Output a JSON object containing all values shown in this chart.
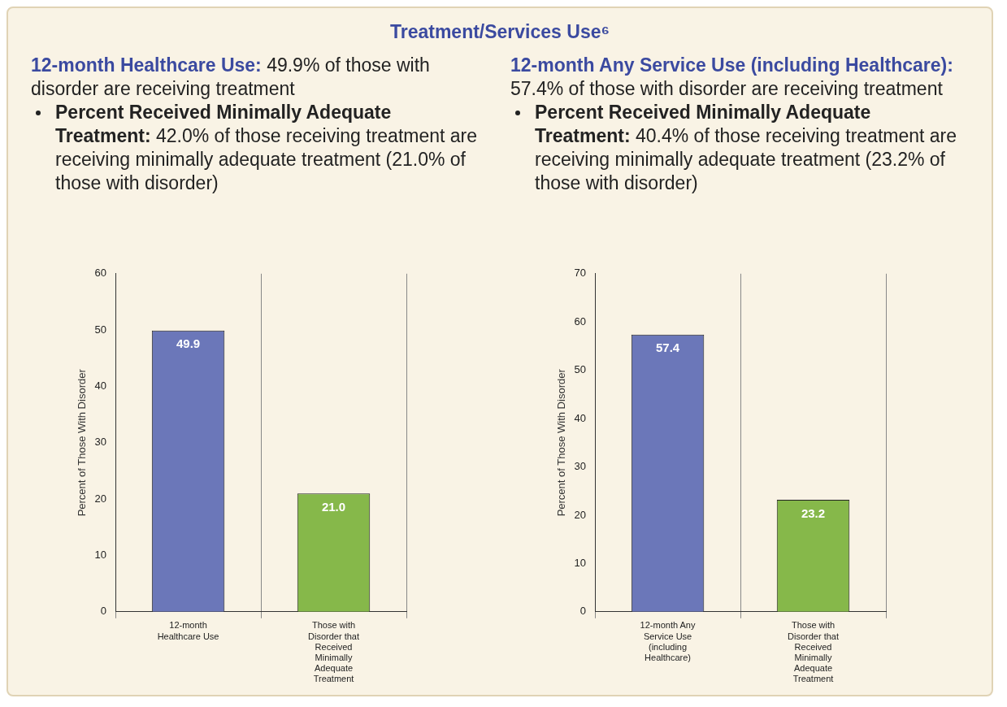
{
  "chart_data": [
    {
      "type": "other",
      "title": "Treatment/Services Use⁶"
    },
    {
      "type": "bar",
      "subtitle": "12-month Healthcare Use: 49.9% of those with disorder are receiving treatment",
      "annotations": [
        "Percent Received Minimally Adequate Treatment: 42.0% of those receiving treatment are receiving minimally adequate treatment (21.0% of those with disorder)"
      ],
      "categories": [
        "12-month Healthcare Use",
        "Those with Disorder that Received Minimally Adequate Treatment"
      ],
      "values": [
        49.9,
        21.0
      ],
      "colors": [
        "#6b77b9",
        "#86b84a"
      ],
      "value_labels": [
        "49.9",
        "21.0"
      ],
      "ylabel": "Percent of Those With Disorder",
      "ylim": [
        0,
        60
      ],
      "yticks": [
        0,
        10,
        20,
        30,
        40,
        50,
        60
      ],
      "grid": "x"
    },
    {
      "type": "bar",
      "subtitle": "12-month Any Service Use (including Healthcare): 57.4% of those with disorder are receiving treatment",
      "annotations": [
        "Percent Received Minimally Adequate Treatment: 40.4% of those receiving treatment are receiving minimally adequate treatment (23.2% of those with disorder)"
      ],
      "categories": [
        "12-month Any Service Use (including Healthcare)",
        "Those with Disorder that Received Minimally Adequate Treatment"
      ],
      "values": [
        57.4,
        23.2
      ],
      "colors": [
        "#6b77b9",
        "#86b84a"
      ],
      "value_labels": [
        "57.4",
        "23.2"
      ],
      "ylabel": "Percent of Those With Disorder",
      "ylim": [
        0,
        70
      ],
      "yticks": [
        0,
        10,
        20,
        30,
        40,
        50,
        60,
        70
      ],
      "grid": "x"
    }
  ]
}
